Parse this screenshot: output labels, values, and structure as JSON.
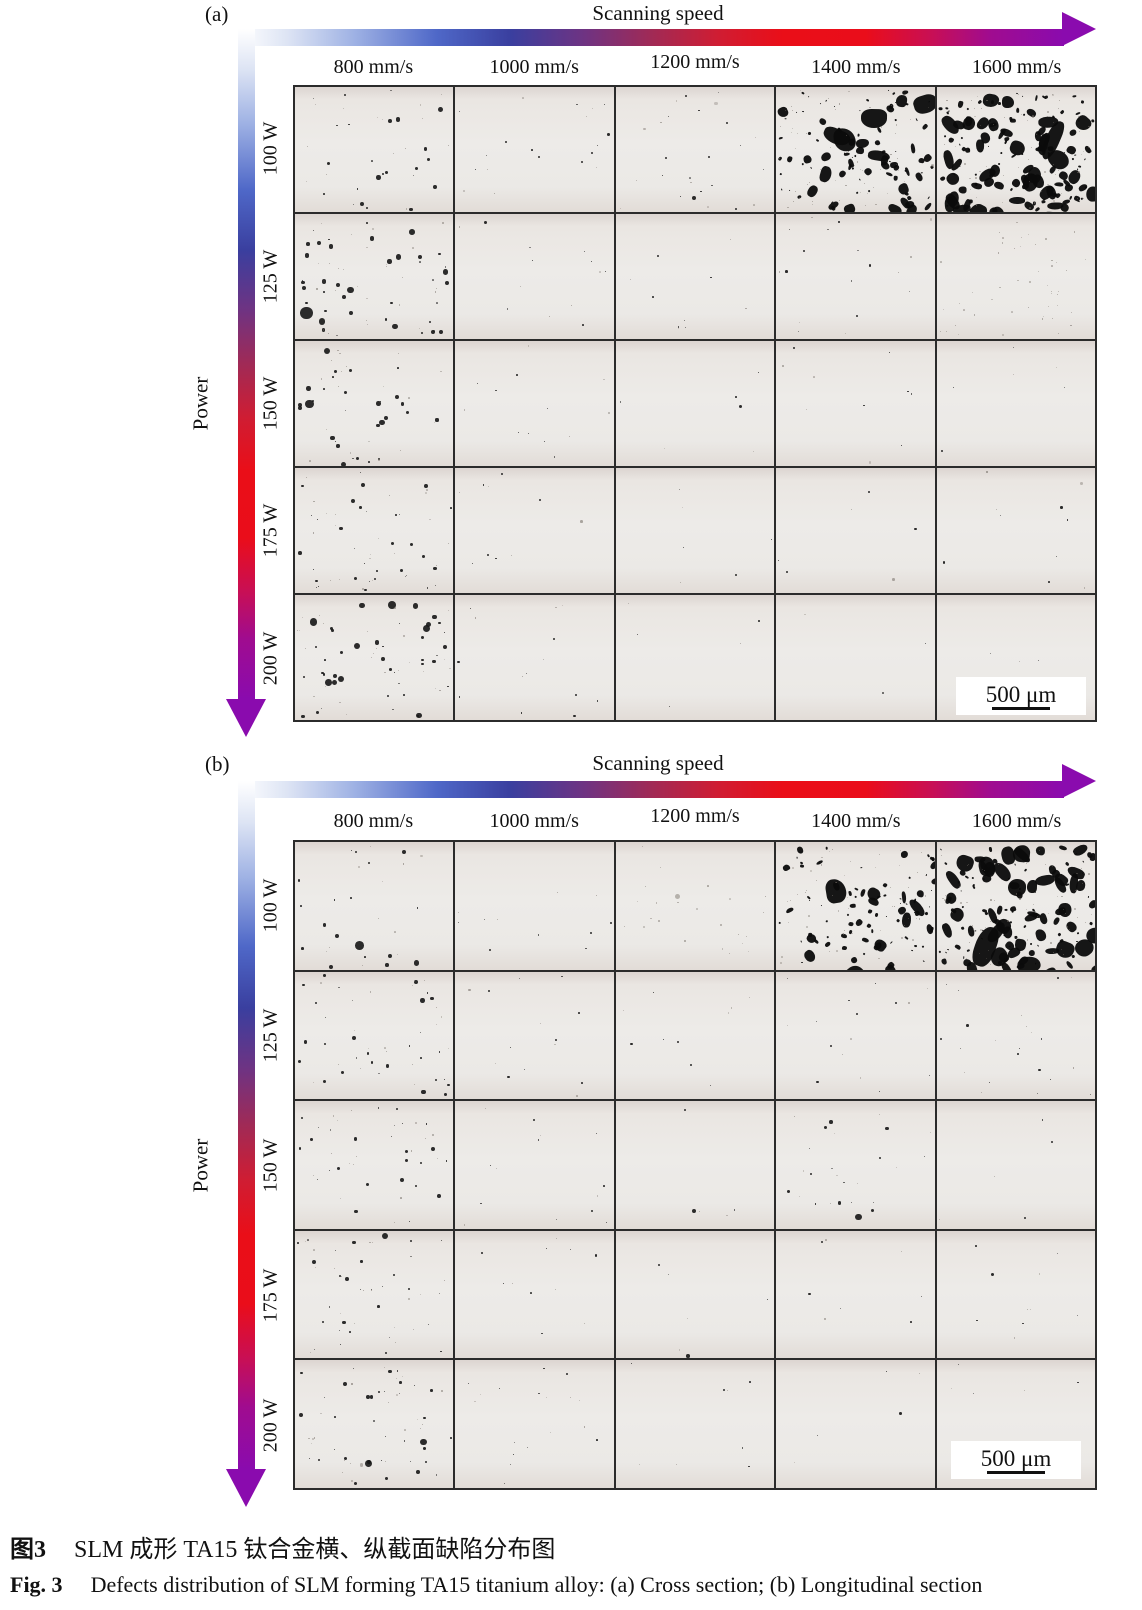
{
  "figure": {
    "scale_bar_label": "500 μm",
    "caption_zh_bold": "图3",
    "caption_zh": "SLM 成形 TA15 钛合金横、纵截面缺陷分布图",
    "caption_en_bold": "Fig. 3",
    "caption_en": "Defects distribution of SLM forming TA15 titanium alloy: (a) Cross section; (b) Longitudinal section",
    "panels": [
      {
        "tag": "(a)",
        "section": "Cross section",
        "x_axis_label": "Scanning speed",
        "y_axis_label": "Power",
        "speeds": [
          "800 mm/s",
          "1000 mm/s",
          "1200 mm/s",
          "1400 mm/s",
          "1600 mm/s"
        ],
        "powers": [
          "100 W",
          "125 W",
          "150 W",
          "175 W",
          "200 W"
        ],
        "cells": [
          [
            {
              "n": 24,
              "smin": 1.5,
              "smax": 5,
              "shape": "round",
              "seed": 11
            },
            {
              "n": 12,
              "smin": 1,
              "smax": 2.5,
              "shape": "round",
              "seed": 12
            },
            {
              "n": 16,
              "smin": 1,
              "smax": 2.5,
              "shape": "round",
              "seed": 13
            },
            {
              "n": 95,
              "smin": 1,
              "smax": 9,
              "shape": "blob",
              "seed": 14
            },
            {
              "n": 140,
              "smin": 1,
              "smax": 13,
              "shape": "blob",
              "seed": 15
            }
          ],
          [
            {
              "n": 42,
              "smin": 1.5,
              "smax": 7,
              "shape": "round",
              "seed": 21
            },
            {
              "n": 8,
              "smin": 1,
              "smax": 2.5,
              "shape": "round",
              "seed": 22
            },
            {
              "n": 6,
              "smin": 1,
              "smax": 2.5,
              "shape": "round",
              "seed": 23
            },
            {
              "n": 11,
              "smin": 1,
              "smax": 3,
              "shape": "round",
              "seed": 24
            },
            {
              "n": 30,
              "smin": 1,
              "smax": 2,
              "shape": "faint",
              "seed": 25
            }
          ],
          [
            {
              "n": 30,
              "smin": 1.5,
              "smax": 5.5,
              "shape": "round",
              "seed": 31
            },
            {
              "n": 8,
              "smin": 1,
              "smax": 2.5,
              "shape": "round",
              "seed": 32
            },
            {
              "n": 4,
              "smin": 1,
              "smax": 2.5,
              "shape": "round",
              "seed": 33
            },
            {
              "n": 6,
              "smin": 1,
              "smax": 2.5,
              "shape": "round",
              "seed": 34
            },
            {
              "n": 4,
              "smin": 1,
              "smax": 2.5,
              "shape": "round",
              "seed": 35
            }
          ],
          [
            {
              "n": 34,
              "smin": 1,
              "smax": 4.5,
              "shape": "round",
              "seed": 41
            },
            {
              "n": 6,
              "smin": 1,
              "smax": 2.5,
              "shape": "round",
              "seed": 42
            },
            {
              "n": 4,
              "smin": 1,
              "smax": 2.5,
              "shape": "round",
              "seed": 43
            },
            {
              "n": 4,
              "smin": 1,
              "smax": 2.5,
              "shape": "round",
              "seed": 44
            },
            {
              "n": 6,
              "smin": 1,
              "smax": 2.5,
              "shape": "round",
              "seed": 45
            }
          ],
          [
            {
              "n": 44,
              "smin": 1.5,
              "smax": 8,
              "shape": "round",
              "seed": 51
            },
            {
              "n": 9,
              "smin": 1,
              "smax": 2.5,
              "shape": "round",
              "seed": 52
            },
            {
              "n": 3,
              "smin": 1,
              "smax": 2.5,
              "shape": "round",
              "seed": 53
            },
            {
              "n": 2,
              "smin": 1,
              "smax": 2,
              "shape": "round",
              "seed": 54
            },
            {
              "n": 2,
              "smin": 1,
              "smax": 2,
              "shape": "round",
              "seed": 55
            }
          ]
        ]
      },
      {
        "tag": "(b)",
        "section": "Longitudinal section",
        "x_axis_label": "Scanning speed",
        "y_axis_label": "Power",
        "speeds": [
          "800 mm/s",
          "1000 mm/s",
          "1200 mm/s",
          "1400 mm/s",
          "1600 mm/s"
        ],
        "powers": [
          "100 W",
          "125 W",
          "150 W",
          "175 W",
          "200 W"
        ],
        "cells": [
          [
            {
              "n": 18,
              "smin": 1.5,
              "smax": 5,
              "shape": "round",
              "seed": 61
            },
            {
              "n": 7,
              "smin": 1,
              "smax": 2.5,
              "shape": "round",
              "seed": 62
            },
            {
              "n": 15,
              "smin": 1,
              "smax": 2.5,
              "shape": "faint",
              "seed": 63
            },
            {
              "n": 85,
              "smin": 1,
              "smax": 8,
              "shape": "blob",
              "seed": 64
            },
            {
              "n": 130,
              "smin": 1,
              "smax": 14,
              "shape": "blob",
              "seed": 65
            }
          ],
          [
            {
              "n": 30,
              "smin": 1,
              "smax": 5,
              "shape": "round",
              "seed": 71
            },
            {
              "n": 9,
              "smin": 1,
              "smax": 2.5,
              "shape": "round",
              "seed": 72
            },
            {
              "n": 6,
              "smin": 1,
              "smax": 2.5,
              "shape": "round",
              "seed": 73
            },
            {
              "n": 10,
              "smin": 1,
              "smax": 2.5,
              "shape": "round",
              "seed": 74
            },
            {
              "n": 14,
              "smin": 1,
              "smax": 2.5,
              "shape": "round",
              "seed": 75
            }
          ],
          [
            {
              "n": 26,
              "smin": 1,
              "smax": 4.5,
              "shape": "round",
              "seed": 81
            },
            {
              "n": 9,
              "smin": 1,
              "smax": 2.5,
              "shape": "round",
              "seed": 82
            },
            {
              "n": 3,
              "smin": 1,
              "smax": 2.5,
              "shape": "round",
              "seed": 83
            },
            {
              "n": 16,
              "smin": 1,
              "smax": 3.5,
              "shape": "round",
              "seed": 84
            },
            {
              "n": 3,
              "smin": 1,
              "smax": 2.5,
              "shape": "round",
              "seed": 85
            }
          ],
          [
            {
              "n": 30,
              "smin": 1,
              "smax": 4,
              "shape": "round",
              "seed": 91
            },
            {
              "n": 7,
              "smin": 1,
              "smax": 2.5,
              "shape": "round",
              "seed": 92
            },
            {
              "n": 4,
              "smin": 1,
              "smax": 2.5,
              "shape": "round",
              "seed": 93
            },
            {
              "n": 5,
              "smin": 1,
              "smax": 2.5,
              "shape": "round",
              "seed": 94
            },
            {
              "n": 6,
              "smin": 1,
              "smax": 2.5,
              "shape": "round",
              "seed": 95
            }
          ],
          [
            {
              "n": 36,
              "smin": 1,
              "smax": 5,
              "shape": "round",
              "seed": 101
            },
            {
              "n": 11,
              "smin": 1,
              "smax": 2.5,
              "shape": "round",
              "seed": 102
            },
            {
              "n": 5,
              "smin": 1,
              "smax": 2.5,
              "shape": "round",
              "seed": 103
            },
            {
              "n": 3,
              "smin": 1,
              "smax": 2.5,
              "shape": "round",
              "seed": 104
            },
            {
              "n": 4,
              "smin": 1,
              "smax": 2.5,
              "shape": "round",
              "seed": 105
            }
          ]
        ]
      }
    ]
  },
  "colors": {
    "arrow_gradient": [
      [
        "#ffffff",
        0
      ],
      [
        "#dde4f4",
        6
      ],
      [
        "#9fb2e4",
        14
      ],
      [
        "#4f68c8",
        24
      ],
      [
        "#3a3f9f",
        33
      ],
      [
        "#6f3382",
        42
      ],
      [
        "#a02a56",
        50
      ],
      [
        "#cf1d33",
        58
      ],
      [
        "#ea0e18",
        66
      ],
      [
        "#ea0d1a",
        76
      ],
      [
        "#c80f55",
        84
      ],
      [
        "#a00c8f",
        91
      ],
      [
        "#8a0bae",
        100
      ]
    ],
    "arrow_head": "#8a0bae",
    "dot": "#161616",
    "blob_dot": "#0b0b0b",
    "faint_dot": "#7b746d",
    "grid_line": "#2b2b2b",
    "cell_background": "#ebe9e6"
  }
}
